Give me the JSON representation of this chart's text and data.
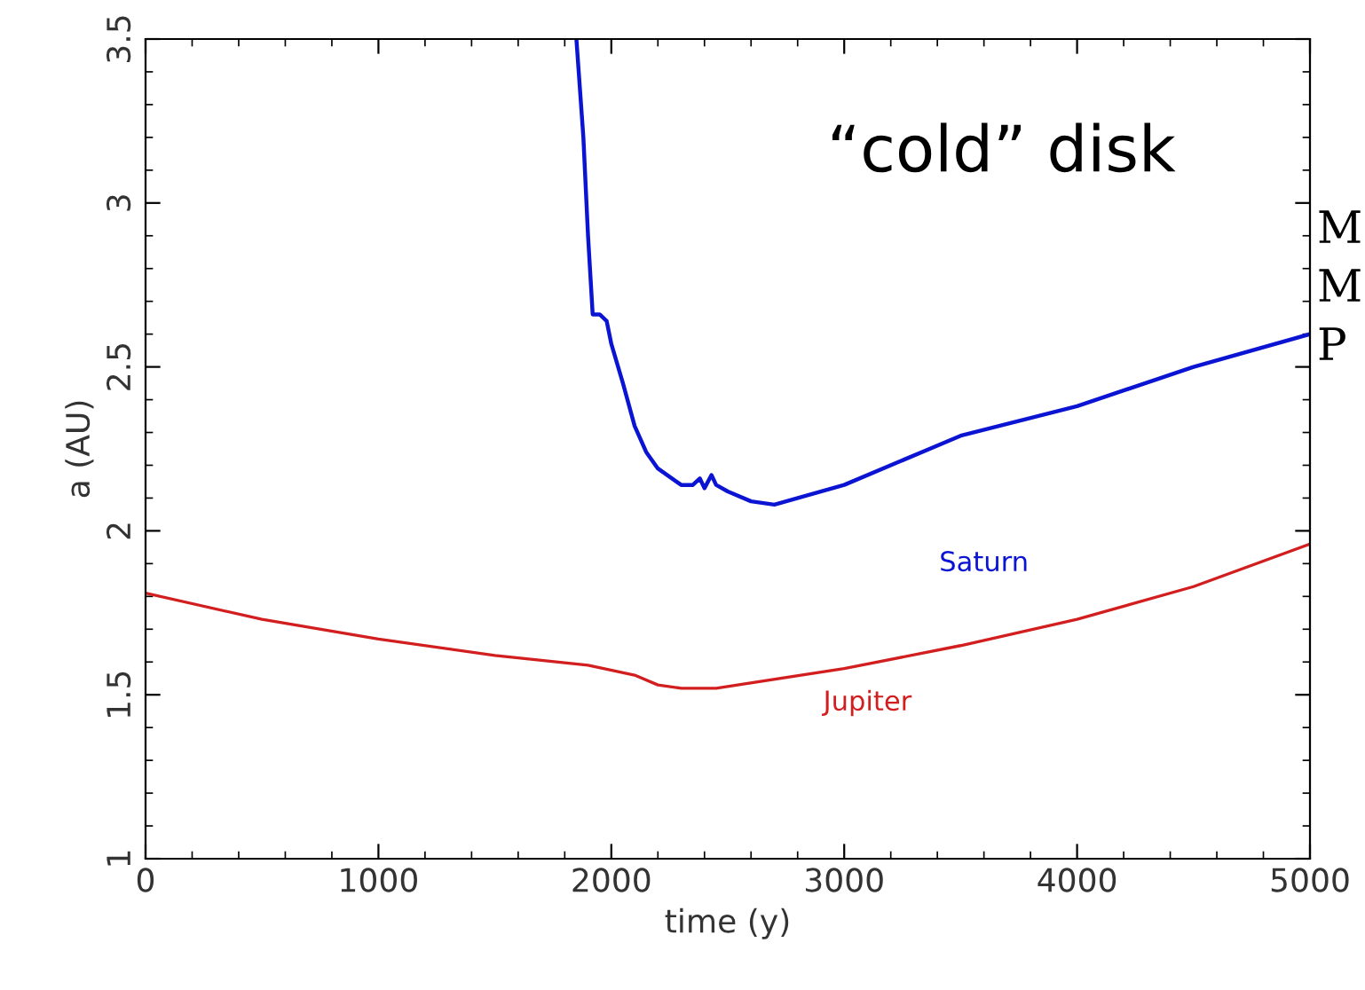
{
  "chart_data": {
    "type": "line",
    "xlabel": "time (y)",
    "ylabel": "a (AU)",
    "xlim": [
      0,
      5000
    ],
    "xticks": [
      0,
      1000,
      2000,
      3000,
      4000,
      5000
    ],
    "ylim": [
      1,
      3.5
    ],
    "yticks": [
      1,
      1.5,
      2,
      2.5,
      3,
      3.5
    ],
    "grid": false,
    "legend": false,
    "marker": "none",
    "line_style": "solid",
    "series": [
      {
        "name": "Saturn",
        "color": "#0a14d2",
        "x": [
          1850,
          1880,
          1900,
          1920,
          1950,
          1980,
          2000,
          2050,
          2100,
          2150,
          2200,
          2300,
          2350,
          2380,
          2400,
          2430,
          2450,
          2500,
          2600,
          2700,
          3000,
          3500,
          4000,
          4500,
          5000
        ],
        "values": [
          3.5,
          3.2,
          2.9,
          2.66,
          2.66,
          2.64,
          2.57,
          2.45,
          2.32,
          2.24,
          2.19,
          2.14,
          2.14,
          2.16,
          2.13,
          2.17,
          2.14,
          2.12,
          2.09,
          2.08,
          2.14,
          2.29,
          2.38,
          2.5,
          2.6
        ]
      },
      {
        "name": "Jupiter",
        "color": "#d21e1e",
        "x": [
          0,
          500,
          1000,
          1500,
          1900,
          2100,
          2200,
          2300,
          2450,
          3000,
          3500,
          4000,
          4500,
          5000
        ],
        "values": [
          1.81,
          1.73,
          1.67,
          1.62,
          1.59,
          1.56,
          1.53,
          1.52,
          1.52,
          1.58,
          1.65,
          1.73,
          1.83,
          1.96
        ]
      }
    ],
    "annotations": [
      "“cold” disk",
      "M",
      "M",
      "P"
    ]
  }
}
